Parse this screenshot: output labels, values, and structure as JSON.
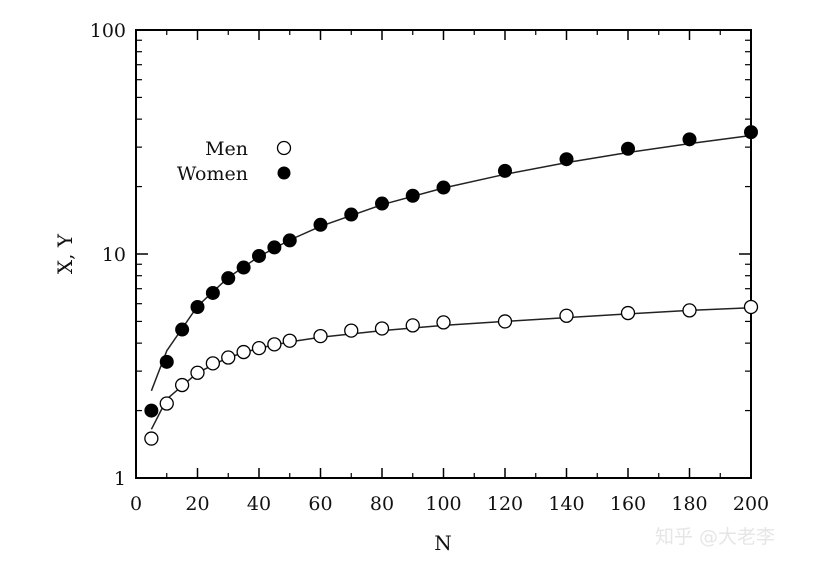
{
  "chart_data": {
    "type": "scatter",
    "title": "",
    "xlabel": "N",
    "ylabel": "X, Y",
    "xlim": [
      0,
      200
    ],
    "ylim": [
      1,
      100
    ],
    "yscale": "log",
    "xticks": [
      0,
      20,
      40,
      60,
      80,
      100,
      120,
      140,
      160,
      180,
      200
    ],
    "yticks": [
      1,
      10,
      100
    ],
    "grid": false,
    "legend_position": "top-left",
    "series": [
      {
        "name": "Men",
        "marker": "open-circle",
        "x": [
          5,
          10,
          15,
          20,
          25,
          30,
          35,
          40,
          45,
          50,
          60,
          70,
          80,
          90,
          100,
          120,
          140,
          160,
          180,
          200
        ],
        "y": [
          1.5,
          2.15,
          2.6,
          2.95,
          3.25,
          3.45,
          3.65,
          3.8,
          3.95,
          4.1,
          4.3,
          4.55,
          4.65,
          4.8,
          4.95,
          5.0,
          5.3,
          5.45,
          5.6,
          5.8
        ],
        "fit": {
          "x": [
            5,
            10,
            20,
            30,
            40,
            50,
            60,
            80,
            100,
            120,
            140,
            160,
            180,
            200
          ],
          "y": [
            1.65,
            2.25,
            2.95,
            3.45,
            3.8,
            4.05,
            4.25,
            4.55,
            4.8,
            5.0,
            5.2,
            5.4,
            5.6,
            5.75
          ]
        }
      },
      {
        "name": "Women",
        "marker": "filled-circle",
        "x": [
          5,
          10,
          15,
          20,
          25,
          30,
          35,
          40,
          45,
          50,
          60,
          70,
          80,
          90,
          100,
          120,
          140,
          160,
          180,
          200
        ],
        "y": [
          2.0,
          3.3,
          4.6,
          5.8,
          6.7,
          7.8,
          8.7,
          9.8,
          10.7,
          11.5,
          13.5,
          15.0,
          16.8,
          18.2,
          19.8,
          23.5,
          26.5,
          29.5,
          32.5,
          35.0
        ],
        "fit": {
          "x": [
            5,
            10,
            20,
            30,
            40,
            50,
            60,
            80,
            100,
            120,
            140,
            160,
            180,
            200
          ],
          "y": [
            2.45,
            3.7,
            5.85,
            7.85,
            9.75,
            11.55,
            13.3,
            16.6,
            19.7,
            22.7,
            25.6,
            28.4,
            31.1,
            33.8
          ]
        }
      }
    ]
  },
  "watermark": "知乎 @大老李"
}
